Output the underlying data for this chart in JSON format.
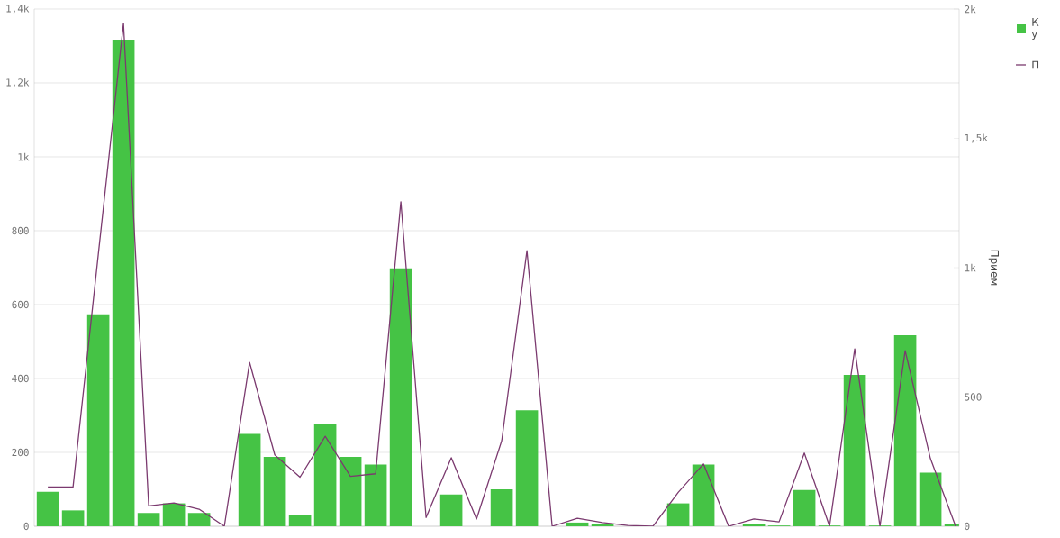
{
  "chart_data": {
    "type": "bar",
    "categories": [
      null,
      null,
      null,
      null,
      null,
      null,
      null,
      null,
      null,
      null,
      null,
      null,
      null,
      null,
      null,
      null,
      null,
      null,
      null,
      null,
      null,
      null,
      null,
      null,
      null,
      null,
      null,
      null,
      null,
      null,
      null,
      null,
      null,
      null,
      null,
      null,
      null
    ],
    "y2label": "Прием",
    "series": [
      {
        "name": "К у",
        "color": "#45c345",
        "values": [
          93,
          43,
          574,
          1317,
          36,
          62,
          36,
          0,
          250,
          188,
          31,
          276,
          188,
          167,
          698,
          0,
          86,
          0,
          100,
          314,
          0,
          10,
          5,
          0,
          0,
          62,
          167,
          0,
          7,
          2,
          98,
          2,
          410,
          2,
          517,
          145,
          7
        ]
      },
      {
        "name": "П",
        "type": "line",
        "axis": "y2",
        "color": "#7b3a6f",
        "values": [
          152,
          152,
          1050,
          1945,
          79,
          90,
          66,
          0,
          634,
          276,
          190,
          348,
          193,
          203,
          1255,
          34,
          265,
          28,
          331,
          1066,
          0,
          31,
          14,
          3,
          0,
          131,
          241,
          0,
          28,
          17,
          283,
          0,
          686,
          0,
          679,
          262,
          0
        ]
      }
    ],
    "ylim": [
      0,
      1400
    ],
    "yticks": [
      0,
      200,
      400,
      600,
      800,
      {
        "value": 1000,
        "label": "1k"
      },
      {
        "value": 1200,
        "label": "1,2k"
      },
      {
        "value": 1400,
        "label": "1,4k"
      }
    ],
    "y2lim": [
      0,
      2000
    ],
    "y2ticks": [
      0,
      500,
      {
        "value": 1000,
        "label": "1k"
      },
      {
        "value": 1500,
        "label": "1,5k"
      },
      {
        "value": 2000,
        "label": "2k"
      }
    ],
    "grid": "y",
    "legend": "top right",
    "marker": "none",
    "line_style": "solid"
  }
}
